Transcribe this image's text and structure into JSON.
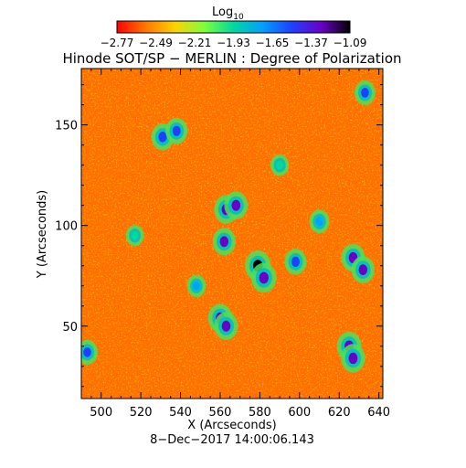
{
  "colorbar": {
    "label": "Log",
    "label_sub": "10",
    "tick_labels": [
      "−2.77",
      "−2.49",
      "−2.21",
      "−1.93",
      "−1.65",
      "−1.37",
      "−1.09"
    ],
    "colors": [
      "#ff0000",
      "#ff7a00",
      "#ffd200",
      "#7dff3c",
      "#00d8a0",
      "#00a0ff",
      "#2040ff",
      "#6a00c8",
      "#000000"
    ]
  },
  "chart_data": {
    "type": "heatmap",
    "title": "Hinode SOT/SP − MERLIN : Degree of Polarization",
    "subtitle": "8−Dec−2017 14:00:06.143",
    "xlabel": "X (Arcseconds)",
    "ylabel": "Y (Arcseconds)",
    "xlim": [
      490,
      642
    ],
    "ylim": [
      14,
      178
    ],
    "x_ticks": [
      500,
      520,
      540,
      560,
      580,
      600,
      620,
      640
    ],
    "y_ticks": [
      50,
      100,
      150
    ],
    "color_scale": "log10",
    "value_range": [
      -2.77,
      -1.09
    ],
    "colorbar_ticks": [
      -2.77,
      -2.49,
      -2.21,
      -1.93,
      -1.65,
      -1.37,
      -1.09
    ],
    "background_value_range": [
      -2.75,
      -2.35
    ],
    "strong_polarization_regions": [
      {
        "x": 579,
        "y": 80,
        "value": -1.15
      },
      {
        "x": 582,
        "y": 74,
        "value": -1.2
      },
      {
        "x": 563,
        "y": 108,
        "value": -1.3
      },
      {
        "x": 568,
        "y": 110,
        "value": -1.35
      },
      {
        "x": 562,
        "y": 92,
        "value": -1.4
      },
      {
        "x": 560,
        "y": 54,
        "value": -1.3
      },
      {
        "x": 563,
        "y": 50,
        "value": -1.35
      },
      {
        "x": 625,
        "y": 40,
        "value": -1.25
      },
      {
        "x": 627,
        "y": 34,
        "value": -1.3
      },
      {
        "x": 627,
        "y": 84,
        "value": -1.35
      },
      {
        "x": 632,
        "y": 78,
        "value": -1.4
      },
      {
        "x": 531,
        "y": 144,
        "value": -1.45
      },
      {
        "x": 538,
        "y": 147,
        "value": -1.5
      },
      {
        "x": 598,
        "y": 82,
        "value": -1.5
      },
      {
        "x": 633,
        "y": 166,
        "value": -1.6
      },
      {
        "x": 493,
        "y": 37,
        "value": -1.6
      },
      {
        "x": 610,
        "y": 102,
        "value": -1.7
      },
      {
        "x": 548,
        "y": 70,
        "value": -1.8
      },
      {
        "x": 590,
        "y": 130,
        "value": -1.85
      },
      {
        "x": 517,
        "y": 95,
        "value": -1.9
      }
    ]
  }
}
